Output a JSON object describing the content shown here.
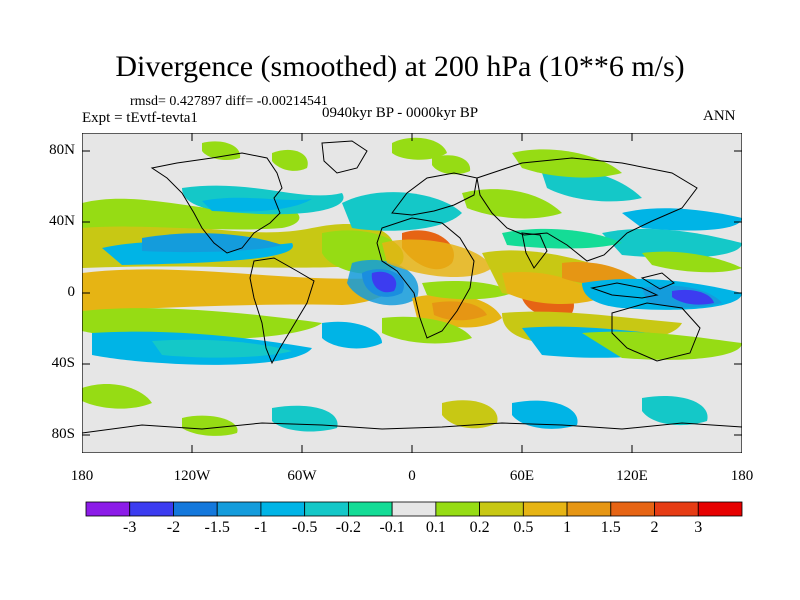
{
  "title": "Divergence (smoothed) at 200 hPa (10**6 m/s)",
  "stats": "rmsd= 0.427897 diff= -0.00214541",
  "experiment": "Expt = tEvtf-tevta1",
  "period": "0940kyr BP - 0000kyr BP",
  "season": "ANN",
  "axes": {
    "y_ticks": [
      "80N",
      "40N",
      "0",
      "40S",
      "80S"
    ],
    "x_ticks": [
      "180",
      "120W",
      "60W",
      "0",
      "60E",
      "120E",
      "180"
    ]
  },
  "colorbar": {
    "labels": [
      "-3",
      "-2",
      "-1.5",
      "-1",
      "-0.5",
      "-0.2",
      "-0.1",
      "0.1",
      "0.2",
      "0.5",
      "1",
      "1.5",
      "2",
      "3"
    ],
    "colors": [
      "#8c1ce8",
      "#3c3cf0",
      "#1478dc",
      "#149cdc",
      "#00b4e6",
      "#14c8c8",
      "#14dc96",
      "#e6e6e6",
      "#96dc14",
      "#c8c814",
      "#e6b414",
      "#e69614",
      "#e66414",
      "#e63c14",
      "#e60000"
    ]
  }
}
